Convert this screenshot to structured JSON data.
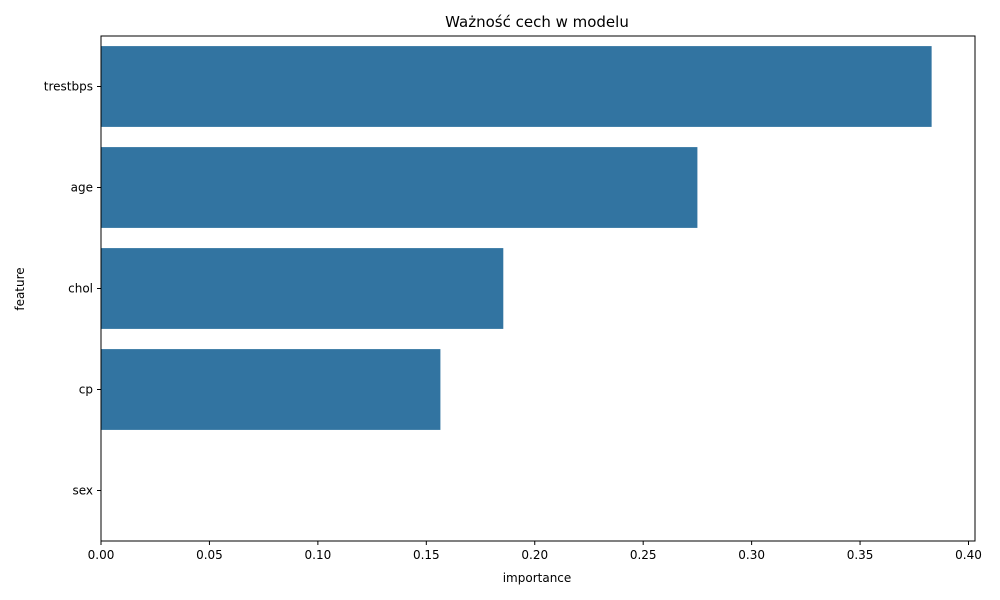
{
  "chart_data": {
    "type": "bar",
    "orientation": "horizontal",
    "title": "Ważność cech w modelu",
    "xlabel": "importance",
    "ylabel": "feature",
    "categories": [
      "trestbps",
      "age",
      "chol",
      "cp",
      "sex"
    ],
    "values": [
      0.383,
      0.275,
      0.1855,
      0.1565,
      0.0
    ],
    "xlim": [
      0.0,
      0.403
    ],
    "xticks": [
      0.0,
      0.05,
      0.1,
      0.15,
      0.2,
      0.25,
      0.3,
      0.35,
      0.4
    ],
    "xtick_labels": [
      "0.00",
      "0.05",
      "0.10",
      "0.15",
      "0.20",
      "0.25",
      "0.30",
      "0.35",
      "0.40"
    ],
    "grid": false,
    "legend": "none",
    "bar_color": "#3274a1"
  }
}
